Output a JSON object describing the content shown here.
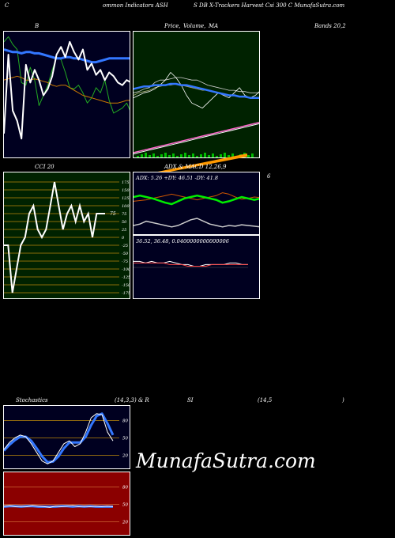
{
  "header": {
    "left": "C",
    "t1": "ommon  Indicators ASH",
    "t2": "S DB X-Trackers Harvest Csi  300  C MunafaSutra.com"
  },
  "labels": {
    "bands_panel": "B",
    "price_panel": "Price,",
    "volume_panel": "Volume,",
    "ma_panel": "MA",
    "bands_value": "Bands 20,2",
    "cci": "CCI 20",
    "adx_macd": "ADX & MACD 12,26,9",
    "six": "6",
    "adx_line": "ADX: 5.26   +DY: 46.51 -DY: 41.8",
    "macd_line": "36.52,  36.48,  0.0400000000000006",
    "stoch_title": "Stochastics",
    "stoch_params": "(14,3,3) & R",
    "si": "SI",
    "rsi_params": "(14,5",
    "rsi_close": ")"
  },
  "watermark": "MunafaSutra.com",
  "colors": {
    "bands_bg": "#000020",
    "price_bg": "#002200",
    "cci_bg": "#002200",
    "adx_bg": "#000020",
    "stoch_bg": "#000020",
    "rsi_bg": "#8b0000"
  },
  "chart_data": [
    {
      "type": "line",
      "name": "bollinger-bands",
      "series": [
        {
          "values": [
            92,
            96,
            90,
            86,
            60,
            58,
            72,
            62,
            42,
            50,
            58,
            70,
            80,
            78,
            68,
            56,
            55,
            58,
            52,
            44,
            48,
            56,
            52,
            62,
            46,
            36,
            38,
            40,
            44,
            36
          ]
        },
        {
          "values": [
            20,
            82,
            38,
            30,
            16,
            74,
            60,
            70,
            62,
            50,
            55,
            65,
            82,
            88,
            80,
            92,
            84,
            78,
            86,
            70,
            75,
            66,
            70,
            62,
            68,
            65,
            60,
            58,
            62,
            60
          ]
        },
        {
          "values": [
            62,
            63,
            64,
            65,
            64,
            62,
            62,
            63,
            62,
            61,
            60,
            58,
            57,
            58,
            58,
            56,
            54,
            52,
            50,
            49,
            48,
            47,
            46,
            45,
            44,
            44,
            44,
            45,
            46,
            46
          ]
        },
        {
          "values": [
            86,
            85,
            84,
            84,
            83,
            84,
            84,
            83,
            83,
            82,
            81,
            80,
            79,
            79,
            80,
            80,
            79,
            79,
            78,
            77,
            76,
            76,
            77,
            78,
            79,
            79,
            79,
            79,
            79,
            79
          ]
        }
      ]
    },
    {
      "type": "line",
      "name": "price-volume-ma",
      "series": [
        {
          "values": [
            52,
            53,
            55,
            56,
            60,
            62,
            62,
            63,
            64,
            64,
            63,
            62,
            62,
            60,
            58,
            57,
            56,
            55,
            54,
            54,
            53,
            53,
            52,
            52,
            52
          ]
        },
        {
          "values": [
            50,
            52,
            53,
            54,
            56,
            57,
            58,
            58,
            59,
            58,
            57,
            56,
            55,
            54,
            54,
            53,
            52,
            51,
            50,
            50,
            49,
            49,
            48,
            48,
            48
          ]
        },
        {
          "values": [
            48,
            50,
            52,
            53,
            55,
            58,
            62,
            68,
            64,
            58,
            50,
            44,
            42,
            40,
            44,
            48,
            52,
            50,
            48,
            52,
            56,
            50,
            48,
            50,
            54
          ]
        },
        {
          "values": [
            5,
            6,
            7,
            8,
            9,
            10,
            11,
            12,
            13,
            14,
            15,
            16,
            17,
            18,
            19,
            20,
            21,
            22,
            23,
            24,
            25,
            26,
            27,
            28,
            29
          ]
        },
        {
          "values": [
            4,
            5,
            6,
            7,
            8,
            9,
            10,
            11,
            12,
            13,
            14,
            15,
            16,
            17,
            18,
            19,
            20,
            21,
            22,
            23,
            24,
            25,
            26,
            27,
            28
          ]
        }
      ]
    },
    {
      "type": "line",
      "name": "cci",
      "yticks": [
        "175",
        "150",
        "125",
        "100",
        "75",
        "50",
        "25",
        "0",
        "-25",
        "-50",
        "-75",
        "-100",
        "-125",
        "-150",
        "-175"
      ],
      "value_label": "75",
      "series": [
        {
          "values": [
            -25,
            -25,
            -175,
            -100,
            -25,
            0,
            75,
            100,
            25,
            0,
            25,
            100,
            175,
            100,
            25,
            75,
            100,
            50,
            100,
            50,
            75,
            0,
            75,
            75,
            75
          ]
        }
      ]
    },
    {
      "type": "line",
      "name": "adx-macd",
      "series": [
        {
          "values": [
            50,
            52,
            50,
            48,
            45,
            42,
            40,
            44,
            48,
            50,
            52,
            50,
            48,
            46,
            42,
            44,
            47,
            50,
            48,
            46,
            48
          ]
        },
        {
          "values": [
            44,
            45,
            46,
            48,
            50,
            52,
            54,
            52,
            50,
            48,
            46,
            48,
            50,
            52,
            56,
            54,
            50,
            47,
            48,
            50,
            49
          ]
        },
        {
          "values": [
            10,
            12,
            16,
            14,
            12,
            10,
            8,
            10,
            14,
            18,
            20,
            16,
            12,
            10,
            8,
            10,
            9,
            11,
            10,
            9,
            8
          ]
        }
      ]
    },
    {
      "type": "line",
      "name": "stochastics",
      "yticks": [
        "80",
        "50",
        "20"
      ],
      "series": [
        {
          "values": [
            30,
            42,
            50,
            55,
            52,
            40,
            25,
            10,
            5,
            10,
            25,
            40,
            45,
            35,
            40,
            60,
            85,
            92,
            90,
            60,
            45
          ]
        },
        {
          "values": [
            28,
            38,
            46,
            52,
            52,
            45,
            32,
            18,
            8,
            9,
            18,
            32,
            42,
            42,
            42,
            52,
            72,
            88,
            92,
            75,
            55
          ]
        }
      ]
    },
    {
      "type": "line",
      "name": "rsi",
      "yticks": [
        "80",
        "50",
        "20"
      ],
      "series": [
        {
          "values": [
            47,
            48,
            46,
            47,
            46,
            48,
            47,
            46,
            45,
            47,
            46,
            47,
            48,
            46,
            47,
            46,
            47,
            46,
            47,
            46
          ]
        },
        {
          "values": [
            46,
            47,
            47,
            46,
            47,
            47,
            46,
            46,
            46,
            46,
            47,
            47,
            46,
            47,
            46,
            47,
            46,
            46,
            46,
            46
          ]
        }
      ]
    }
  ]
}
